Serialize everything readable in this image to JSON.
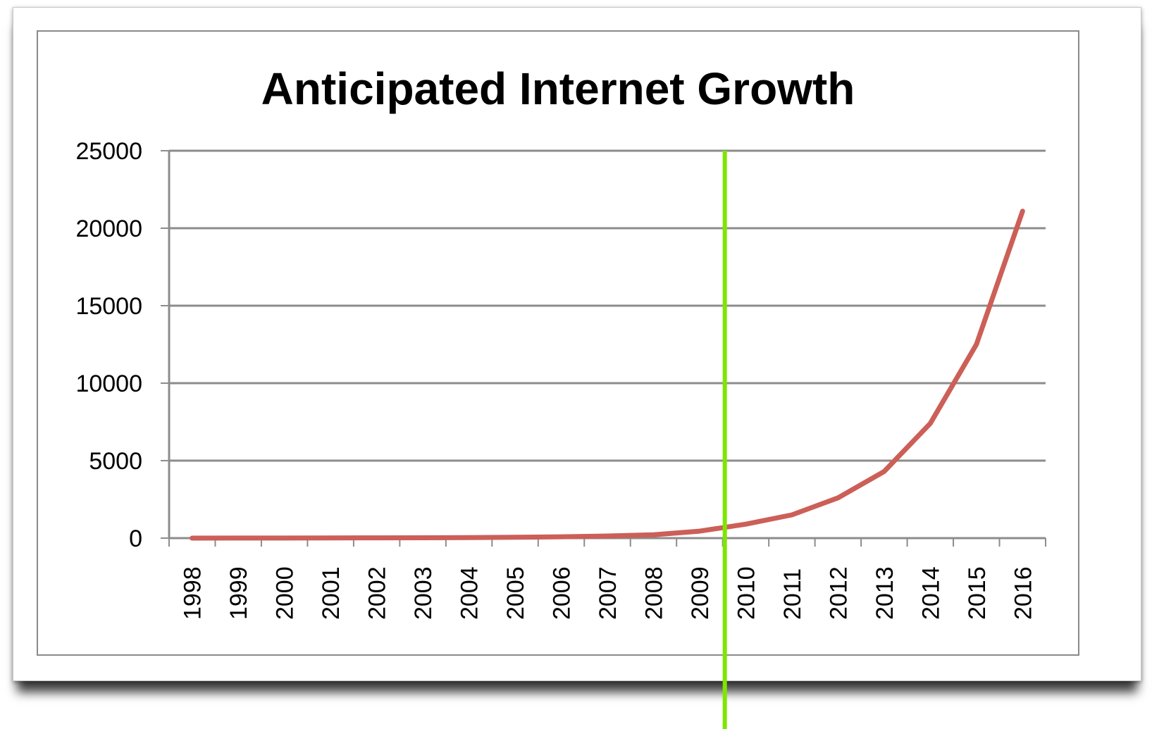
{
  "chart_data": {
    "type": "line",
    "title": "Anticipated Internet Growth",
    "xlabel": "",
    "ylabel": "",
    "categories": [
      "1998",
      "1999",
      "2000",
      "2001",
      "2002",
      "2003",
      "2004",
      "2005",
      "2006",
      "2007",
      "2008",
      "2009",
      "2010",
      "2011",
      "2012",
      "2013",
      "2014",
      "2015",
      "2016"
    ],
    "series": [
      {
        "values": [
          1,
          3,
          6,
          10,
          16,
          24,
          35,
          55,
          85,
          135,
          220,
          450,
          900,
          1500,
          2600,
          4300,
          7400,
          12500,
          21100
        ],
        "color": "#cc5f57"
      }
    ],
    "ylim": [
      0,
      25000
    ],
    "yticks": [
      0,
      5000,
      10000,
      15000,
      20000,
      25000
    ],
    "grid": true,
    "legend": "none",
    "marker_line": {
      "between": [
        "2009",
        "2010"
      ],
      "color": "#7fe600"
    }
  }
}
